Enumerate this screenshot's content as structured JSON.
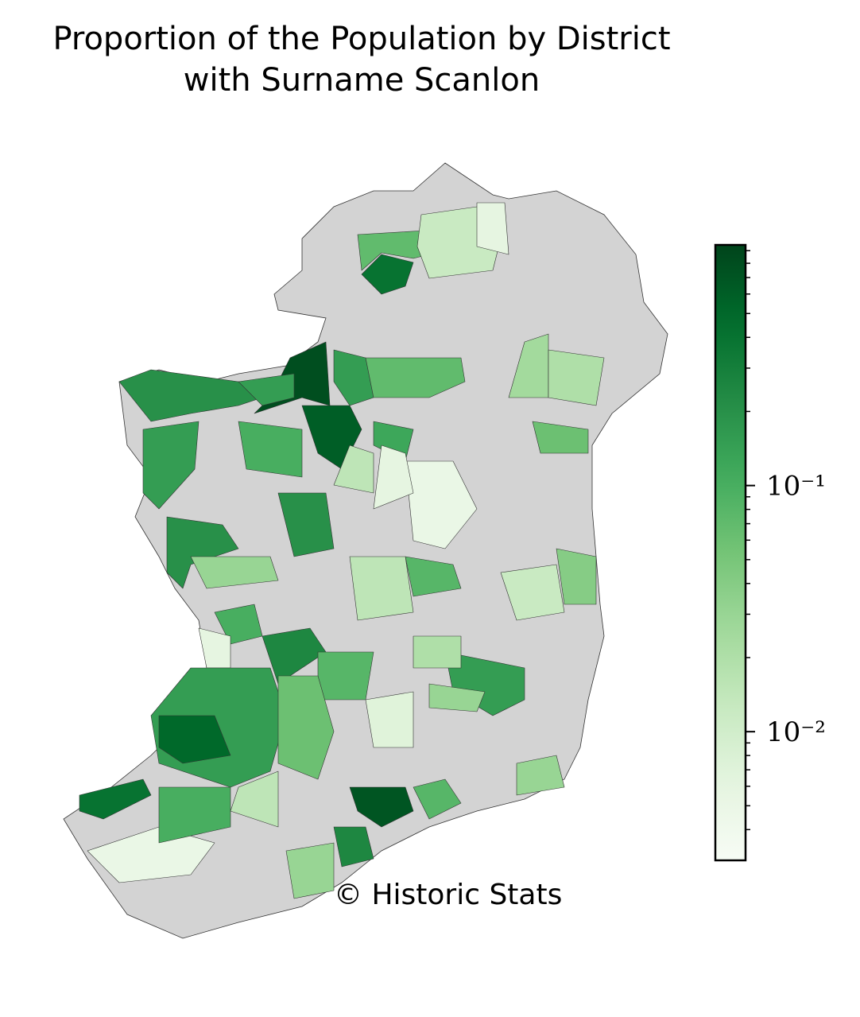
{
  "chart_data": {
    "type": "choropleth",
    "title": [
      "Proportion of the Population by District",
      "with Surname Scanlon"
    ],
    "annotation": "© Historic Stats",
    "colormap": [
      "#f7fcf5",
      "#e5f5e0",
      "#c7e9c0",
      "#a1d99b",
      "#74c476",
      "#41ab5d",
      "#238b45",
      "#006d2c",
      "#00441b"
    ],
    "no_data_color": "#d3d3d3",
    "log_scale": true,
    "clim": [
      0.003,
      0.95
    ],
    "cticks": [
      {
        "value": 0.1,
        "label": "10⁻¹"
      },
      {
        "value": 0.01,
        "label": "10⁻²"
      }
    ],
    "minor_ticks": [
      0.004,
      0.005,
      0.006,
      0.007,
      0.008,
      0.009,
      0.02,
      0.03,
      0.04,
      0.05,
      0.06,
      0.07,
      0.08,
      0.09,
      0.2,
      0.3,
      0.4,
      0.5,
      0.6,
      0.7,
      0.8,
      0.9
    ],
    "values": [
      0.4,
      0.07,
      0.012,
      0.006,
      0.8,
      0.6,
      0.2,
      0.15,
      0.15,
      0.2,
      0.03,
      0.2,
      0.1,
      0.15,
      0.07,
      0.12,
      0.005,
      0.08,
      0.1,
      0.006,
      0.25,
      0.15,
      0.5,
      0.4,
      0.005,
      0.1,
      0.08,
      0.06,
      0.7,
      0.25,
      0.15,
      0.03,
      0.03,
      0.012,
      0.04,
      0.025,
      0.02,
      0.06,
      0.015,
      0.006,
      0.015,
      0.02,
      0.007,
      0.015,
      0.03,
      0.08
    ]
  }
}
